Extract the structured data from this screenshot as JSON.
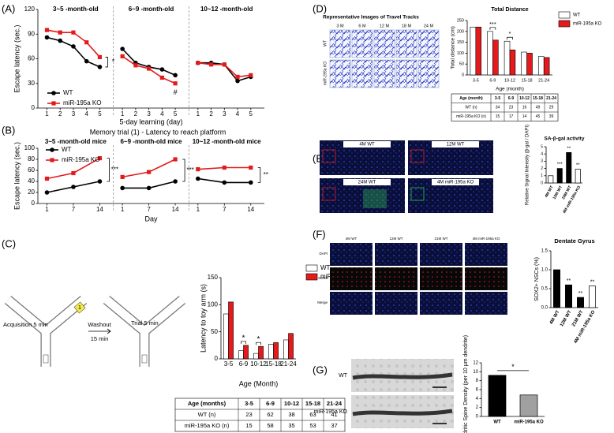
{
  "panel_labels": [
    "(A)",
    "(B)",
    "(C)",
    "(D)",
    "(E)",
    "(F)",
    "(G)"
  ],
  "chart_data": [
    {
      "type": "line",
      "ylabel": "Escape latency (sec.)",
      "xlabel": "5-day learning (day)",
      "ylim": [
        0,
        120
      ],
      "yticks": [
        0,
        30,
        60,
        90,
        120
      ],
      "groups": [
        "3~5 -month-old",
        "6~9 -month-old",
        "10~12 -month-old"
      ],
      "categories": [
        1,
        2,
        3,
        4,
        5,
        1,
        2,
        3,
        4,
        5,
        1,
        2,
        3,
        4,
        5
      ],
      "series": [
        {
          "name": "WT",
          "color": "#000000",
          "marker": "circle",
          "values": [
            86,
            82,
            75,
            57,
            50,
            72,
            55,
            50,
            47,
            40,
            55,
            55,
            53,
            33,
            38
          ]
        },
        {
          "name": "miR-195a KO",
          "color": "#e41a1c",
          "marker": "square",
          "values": [
            95,
            92,
            92,
            80,
            62,
            63,
            52,
            48,
            37,
            30,
            55,
            53,
            53,
            38,
            40
          ]
        }
      ],
      "annotations": [
        "*",
        "#"
      ]
    },
    {
      "type": "line",
      "title": "Memory trial (1) - Latency to reach platform",
      "ylabel": "Escape latency (sec.)",
      "xlabel": "Day",
      "ylim": [
        0,
        100
      ],
      "yticks": [
        0,
        20,
        40,
        60,
        80,
        100
      ],
      "groups": [
        "3~5 -month-old mice",
        "6~9 -month-old mice",
        "10~12 -month-old mice"
      ],
      "categories": [
        1,
        7,
        14,
        1,
        7,
        14,
        1,
        7,
        14
      ],
      "series": [
        {
          "name": "WT",
          "color": "#000000",
          "marker": "circle",
          "values": [
            20,
            30,
            40,
            28,
            28,
            40,
            45,
            38,
            38
          ]
        },
        {
          "name": "miR-195a KO",
          "color": "#e41a1c",
          "marker": "square",
          "values": [
            45,
            55,
            82,
            48,
            57,
            80,
            62,
            65,
            65
          ]
        }
      ],
      "annotations": [
        "***",
        "***",
        "**"
      ]
    },
    {
      "type": "bar",
      "ylabel": "Latency to toy arm (s)",
      "xlabel": "Age (Month)",
      "ylim": [
        0,
        150
      ],
      "yticks": [
        0,
        50,
        100,
        150
      ],
      "categories": [
        "3-5",
        "6-9",
        "10-12",
        "15-18",
        "21-24"
      ],
      "series": [
        {
          "name": "WT",
          "color": "#ffffff",
          "values": [
            83,
            15,
            10,
            27,
            35
          ]
        },
        {
          "name": "miR-195a KO",
          "color": "#e41a1c",
          "values": [
            105,
            25,
            23,
            30,
            47
          ]
        }
      ],
      "annotations": [
        "*",
        "*"
      ]
    },
    {
      "type": "bar",
      "title": "Total Distance",
      "ylabel": "Total distance (cm)",
      "xlabel": "Age (month)",
      "ylim": [
        0,
        250
      ],
      "yticks": [
        0,
        50,
        100,
        150,
        200,
        250
      ],
      "categories": [
        "3-5",
        "6-9",
        "10-12",
        "15-18",
        "21-24"
      ],
      "series": [
        {
          "name": "WT",
          "color": "#ffffff",
          "values": [
            220,
            200,
            155,
            105,
            85
          ]
        },
        {
          "name": "miR-195a KO",
          "color": "#e41a1c",
          "values": [
            220,
            160,
            115,
            100,
            80
          ]
        }
      ],
      "annotations": [
        "***",
        "*"
      ]
    },
    {
      "type": "bar",
      "title": "SA-β-gal activity",
      "ylabel": "Relative Signal Intensity (β-gal / DAPI)",
      "ylim": [
        0,
        5
      ],
      "yticks": [
        0,
        1,
        2,
        3,
        4,
        5
      ],
      "categories": [
        "4M WT",
        "12M WT",
        "24M WT",
        "4M miR-195a KO"
      ],
      "values": [
        1.0,
        2.0,
        4.2,
        1.9
      ],
      "colors": [
        "#ffffff",
        "#000000",
        "#000000",
        "#ffffff"
      ],
      "annotations": [
        "***",
        "**",
        "**"
      ]
    },
    {
      "type": "bar",
      "title": "Dentate Gyrus",
      "ylabel": "SOX2+ NSCs (%)",
      "ylim": [
        0,
        1.5
      ],
      "yticks": [
        {
          "value": 0,
          "label": "0.0"
        },
        0.5,
        {
          "value": 1,
          "label": "1.0"
        },
        1.5
      ],
      "categories": [
        "4M WT",
        "12M WT",
        "21M WT",
        "4M miR-195a KO"
      ],
      "values": [
        1.0,
        0.6,
        0.27,
        0.57
      ],
      "colors": [
        "#000000",
        "#000000",
        "#000000",
        "#ffffff"
      ],
      "annotations": [
        "**",
        "**",
        "**"
      ]
    },
    {
      "type": "bar",
      "ylabel": "Dendritic Spine Density (per 10 μm dendrite)",
      "ylim": [
        0,
        12
      ],
      "yticks": [
        0,
        2,
        4,
        6,
        8,
        10,
        12
      ],
      "categories": [
        "WT",
        "miR-195a KO"
      ],
      "values": [
        9.2,
        4.8
      ],
      "colors": [
        "#000000",
        "#a0a0a0"
      ],
      "annotations": [
        "*"
      ]
    }
  ],
  "c_diagram": {
    "acquisition": "Acquisition 5 min",
    "trial": "Trial 5 min",
    "washout": "Washout",
    "washout_time": "15 min",
    "toy": "1"
  },
  "tables": [
    {
      "header": [
        "Age (months)",
        "3-5",
        "6-9",
        "10-12",
        "15-18",
        "21-24"
      ],
      "rows": [
        [
          "WT (n)",
          23,
          62,
          38,
          63,
          41
        ],
        [
          "miR-195a KO (n)",
          15,
          58,
          35,
          53,
          37
        ]
      ]
    },
    {
      "header": [
        "Age (month)",
        "3-5",
        "6-9",
        "10-12",
        "15-18",
        "21-24"
      ],
      "rows": [
        [
          "WT (n)",
          34,
          23,
          16,
          49,
          29
        ],
        [
          "miR-195a KO (n)",
          15,
          17,
          14,
          45,
          39
        ]
      ]
    }
  ],
  "d_images": {
    "title": "Representative Images of Travel Tracks",
    "columns": [
      "3 M",
      "6 M",
      "12 M",
      "18 M",
      "24 M"
    ],
    "rows": [
      "WT",
      "miR-195a KO"
    ]
  },
  "e_images": [
    "4M WT",
    "12M WT",
    "24M WT",
    "4M miR-195a KO"
  ],
  "f_images": {
    "columns": [
      "4M WT",
      "12M WT",
      "21M WT",
      "4M miR-195a KO"
    ],
    "rows": [
      "DAPI",
      "SOX2",
      "Merge"
    ]
  },
  "g_images": [
    "WT",
    "miR-195a KO"
  ]
}
